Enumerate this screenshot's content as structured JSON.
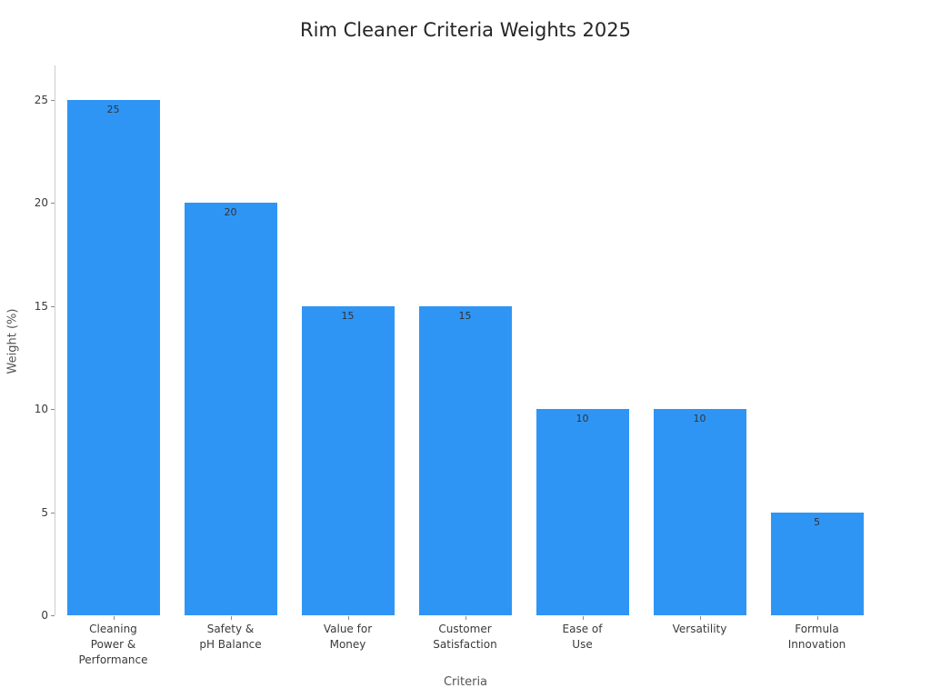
{
  "chart_data": {
    "type": "bar",
    "title": "Rim Cleaner Criteria Weights 2025",
    "xlabel": "Criteria",
    "ylabel": "Weight (%)",
    "categories": [
      "Cleaning\nPower &\nPerformance",
      "Safety &\npH Balance",
      "Value for\nMoney",
      "Customer\nSatisfaction",
      "Ease of\nUse",
      "Versatility",
      "Formula\nInnovation"
    ],
    "values": [
      25,
      20,
      15,
      15,
      10,
      10,
      5
    ],
    "bar_labels": [
      "25",
      "20",
      "15",
      "15",
      "10",
      "10",
      "5"
    ],
    "ylim": [
      0,
      25
    ],
    "yticks": [
      0,
      5,
      10,
      15,
      20,
      25
    ],
    "grid": false,
    "legend": null,
    "colors": {
      "bar": "#2f95f5",
      "title": "#262626",
      "tick_label": "#3a3a3a",
      "axis_label": "#555555",
      "spine": "#cccccc",
      "tick_mark": "#8a8a8a",
      "value_label": "#333333",
      "background": "#ffffff"
    }
  }
}
